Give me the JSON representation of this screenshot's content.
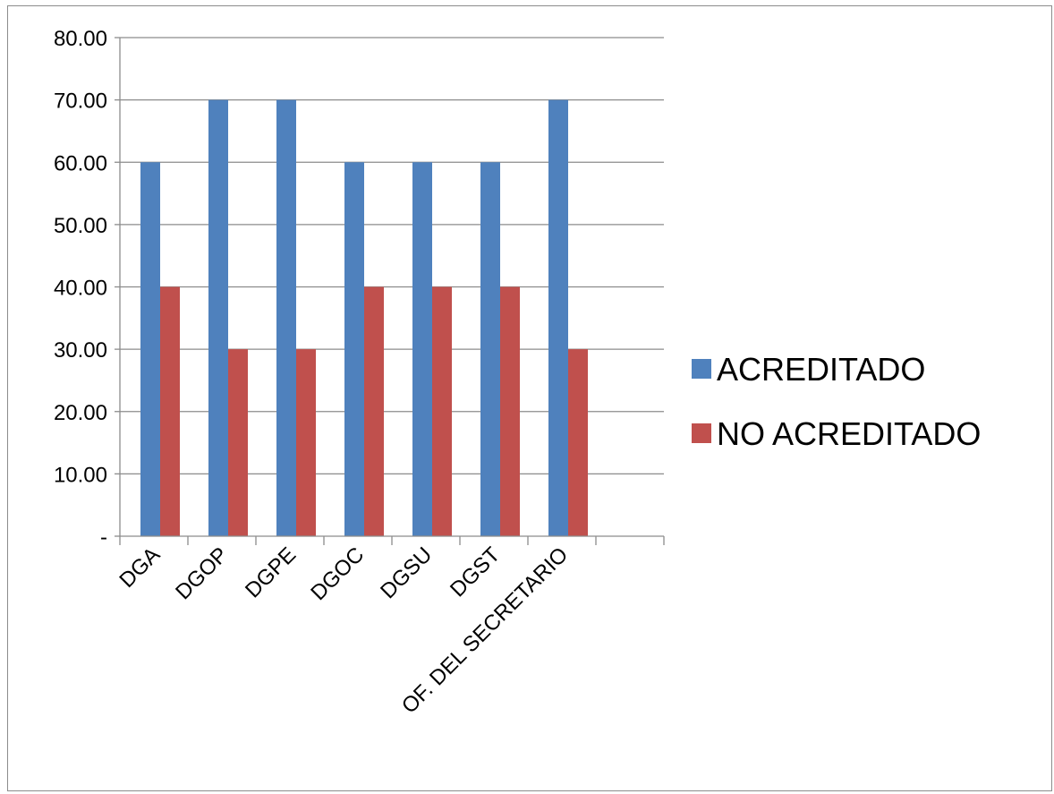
{
  "chart_data": {
    "type": "bar",
    "title": "",
    "xlabel": "",
    "ylabel": "",
    "categories": [
      "DGA",
      "DGOP",
      "DGPE",
      "DGOC",
      "DGSU",
      "DGST",
      "OF. DEL SECRETARIO",
      ""
    ],
    "series": [
      {
        "name": "ACREDITADO",
        "color": "#4f81bd",
        "values": [
          60,
          70,
          70,
          60,
          60,
          60,
          70,
          null
        ]
      },
      {
        "name": "NO ACREDITADO",
        "color": "#c0504d",
        "values": [
          40,
          30,
          30,
          40,
          40,
          40,
          30,
          null
        ]
      }
    ],
    "ylim": [
      0,
      80
    ],
    "yticks": [
      0,
      10,
      20,
      30,
      40,
      50,
      60,
      70,
      80
    ],
    "ytick_labels": [
      "-",
      "10.00",
      "20.00",
      "30.00",
      "40.00",
      "50.00",
      "60.00",
      "70.00",
      "80.00"
    ],
    "grid": true,
    "legend_position": "right"
  }
}
